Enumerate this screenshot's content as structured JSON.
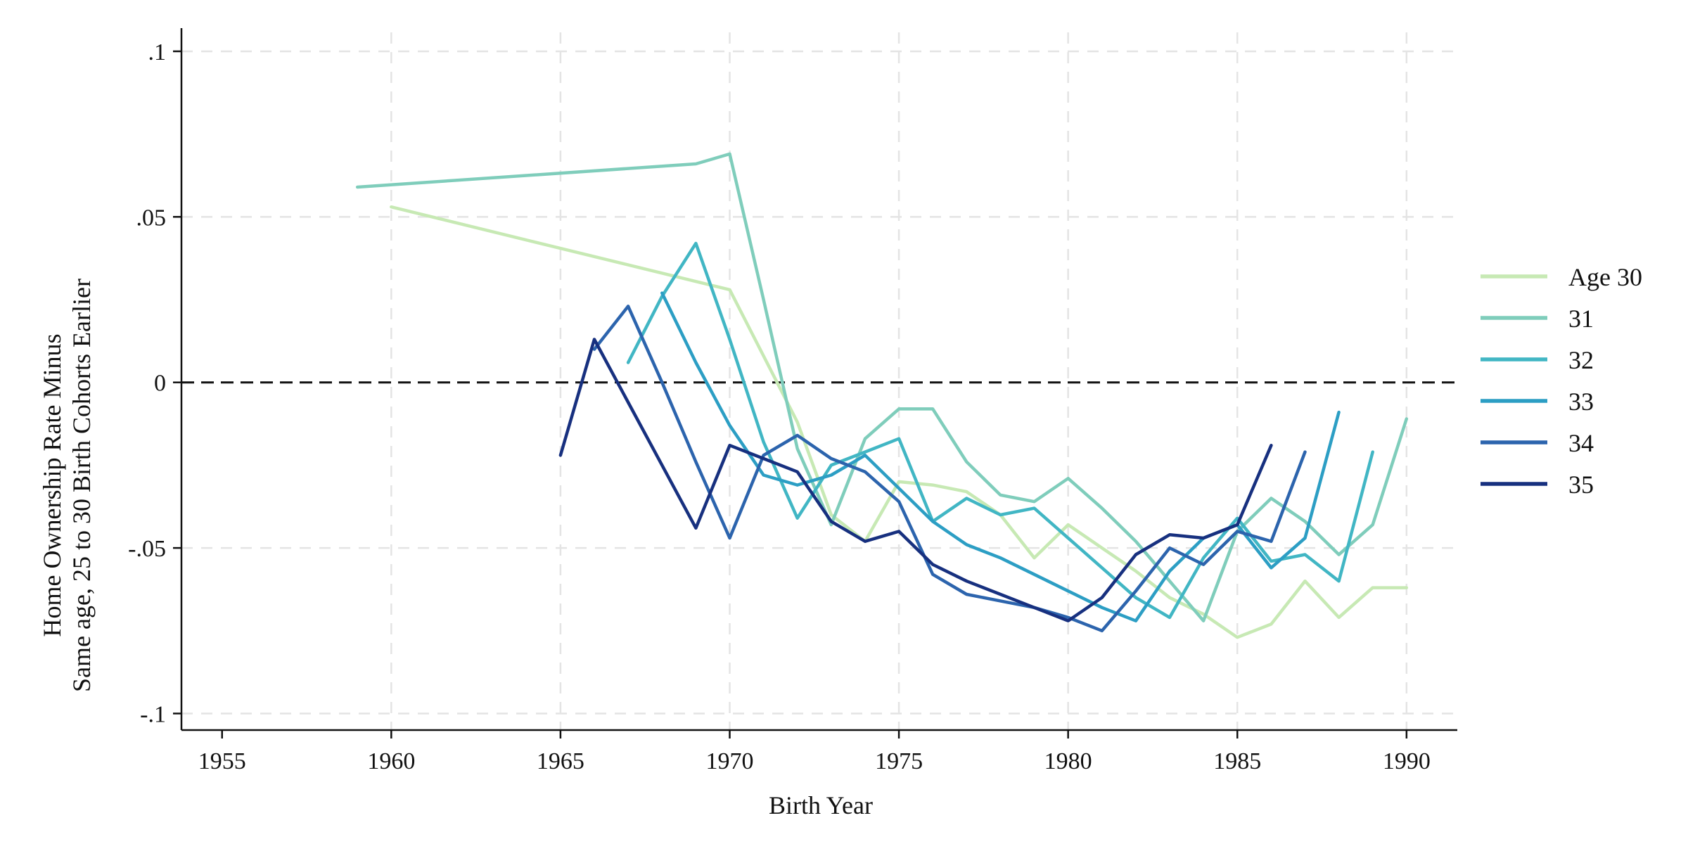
{
  "chart_data": {
    "type": "line",
    "xlabel": "Birth Year",
    "ylabel": [
      "Home Ownership Rate Minus",
      "Same age, 25 to 30 Birth Cohorts Earlier"
    ],
    "xlim": [
      1953.8,
      1991.5
    ],
    "ylim": [
      -0.105,
      0.107
    ],
    "xticks": [
      1955,
      1960,
      1965,
      1970,
      1975,
      1980,
      1985,
      1990
    ],
    "xtick_labels": [
      "1955",
      "1960",
      "1965",
      "1970",
      "1975",
      "1980",
      "1985",
      "1990"
    ],
    "yticks": [
      0.1,
      0.05,
      0,
      -0.05,
      -0.1
    ],
    "ytick_labels": [
      ".1",
      ".05",
      "0",
      "-.05",
      "-.1"
    ],
    "grid": true,
    "reference_line": {
      "y": 0,
      "style": "dashed",
      "color": "#111111"
    },
    "legend_position": "right",
    "series": [
      {
        "name": "Age 30",
        "color": "#c7e9b4",
        "points": [
          [
            1960,
            0.053
          ],
          [
            1970,
            0.028
          ],
          [
            1972,
            -0.012
          ],
          [
            1973,
            -0.04
          ],
          [
            1974,
            -0.048
          ],
          [
            1975,
            -0.03
          ],
          [
            1976,
            -0.031
          ],
          [
            1977,
            -0.033
          ],
          [
            1978,
            -0.04
          ],
          [
            1979,
            -0.053
          ],
          [
            1980,
            -0.043
          ],
          [
            1981,
            -0.05
          ],
          [
            1982,
            -0.057
          ],
          [
            1983,
            -0.065
          ],
          [
            1984,
            -0.07
          ],
          [
            1985,
            -0.077
          ],
          [
            1986,
            -0.073
          ],
          [
            1987,
            -0.06
          ],
          [
            1988,
            -0.071
          ],
          [
            1989,
            -0.062
          ],
          [
            1990,
            -0.062
          ]
        ]
      },
      {
        "name": "31",
        "color": "#7fcdbb",
        "points": [
          [
            1959,
            0.059
          ],
          [
            1969,
            0.066
          ],
          [
            1970,
            0.069
          ],
          [
            1971,
            0.025
          ],
          [
            1972,
            -0.02
          ],
          [
            1973,
            -0.043
          ],
          [
            1974,
            -0.017
          ],
          [
            1975,
            -0.008
          ],
          [
            1976,
            -0.008
          ],
          [
            1977,
            -0.024
          ],
          [
            1978,
            -0.034
          ],
          [
            1979,
            -0.036
          ],
          [
            1980,
            -0.029
          ],
          [
            1981,
            -0.038
          ],
          [
            1982,
            -0.048
          ],
          [
            1983,
            -0.06
          ],
          [
            1984,
            -0.072
          ],
          [
            1985,
            -0.045
          ],
          [
            1986,
            -0.035
          ],
          [
            1987,
            -0.042
          ],
          [
            1988,
            -0.052
          ],
          [
            1989,
            -0.043
          ],
          [
            1990,
            -0.011
          ]
        ]
      },
      {
        "name": "32",
        "color": "#41b6c4",
        "points": [
          [
            1967,
            0.006
          ],
          [
            1968,
            0.026
          ],
          [
            1969,
            0.042
          ],
          [
            1970,
            0.013
          ],
          [
            1971,
            -0.018
          ],
          [
            1972,
            -0.041
          ],
          [
            1973,
            -0.025
          ],
          [
            1974,
            -0.021
          ],
          [
            1975,
            -0.017
          ],
          [
            1976,
            -0.042
          ],
          [
            1977,
            -0.035
          ],
          [
            1978,
            -0.04
          ],
          [
            1979,
            -0.038
          ],
          [
            1980,
            -0.047
          ],
          [
            1981,
            -0.056
          ],
          [
            1982,
            -0.065
          ],
          [
            1983,
            -0.071
          ],
          [
            1984,
            -0.053
          ],
          [
            1985,
            -0.041
          ],
          [
            1986,
            -0.054
          ],
          [
            1987,
            -0.052
          ],
          [
            1988,
            -0.06
          ],
          [
            1989,
            -0.021
          ]
        ]
      },
      {
        "name": "33",
        "color": "#2c9ec4",
        "points": [
          [
            1968,
            0.027
          ],
          [
            1969,
            0.006
          ],
          [
            1970,
            -0.013
          ],
          [
            1971,
            -0.028
          ],
          [
            1972,
            -0.031
          ],
          [
            1973,
            -0.028
          ],
          [
            1974,
            -0.022
          ],
          [
            1975,
            -0.032
          ],
          [
            1976,
            -0.042
          ],
          [
            1977,
            -0.049
          ],
          [
            1978,
            -0.053
          ],
          [
            1979,
            -0.058
          ],
          [
            1980,
            -0.063
          ],
          [
            1981,
            -0.068
          ],
          [
            1982,
            -0.072
          ],
          [
            1983,
            -0.057
          ],
          [
            1984,
            -0.047
          ],
          [
            1985,
            -0.043
          ],
          [
            1986,
            -0.056
          ],
          [
            1987,
            -0.047
          ],
          [
            1988,
            -0.009
          ]
        ]
      },
      {
        "name": "34",
        "color": "#2c64ad",
        "points": [
          [
            1966,
            0.01
          ],
          [
            1967,
            0.023
          ],
          [
            1968,
            0.0
          ],
          [
            1969,
            -0.024
          ],
          [
            1970,
            -0.047
          ],
          [
            1971,
            -0.022
          ],
          [
            1972,
            -0.016
          ],
          [
            1973,
            -0.023
          ],
          [
            1974,
            -0.027
          ],
          [
            1975,
            -0.036
          ],
          [
            1976,
            -0.058
          ],
          [
            1977,
            -0.064
          ],
          [
            1978,
            -0.066
          ],
          [
            1979,
            -0.068
          ],
          [
            1980,
            -0.071
          ],
          [
            1981,
            -0.075
          ],
          [
            1982,
            -0.063
          ],
          [
            1983,
            -0.05
          ],
          [
            1984,
            -0.055
          ],
          [
            1985,
            -0.045
          ],
          [
            1986,
            -0.048
          ],
          [
            1987,
            -0.021
          ]
        ]
      },
      {
        "name": "35",
        "color": "#17307f",
        "points": [
          [
            1965,
            -0.022
          ],
          [
            1966,
            0.013
          ],
          [
            1967,
            -0.006
          ],
          [
            1968,
            -0.025
          ],
          [
            1969,
            -0.044
          ],
          [
            1970,
            -0.019
          ],
          [
            1971,
            -0.023
          ],
          [
            1972,
            -0.027
          ],
          [
            1973,
            -0.042
          ],
          [
            1974,
            -0.048
          ],
          [
            1975,
            -0.045
          ],
          [
            1976,
            -0.055
          ],
          [
            1977,
            -0.06
          ],
          [
            1978,
            -0.064
          ],
          [
            1979,
            -0.068
          ],
          [
            1980,
            -0.072
          ],
          [
            1981,
            -0.065
          ],
          [
            1982,
            -0.052
          ],
          [
            1983,
            -0.046
          ],
          [
            1984,
            -0.047
          ],
          [
            1985,
            -0.043
          ],
          [
            1986,
            -0.019
          ]
        ]
      }
    ]
  }
}
